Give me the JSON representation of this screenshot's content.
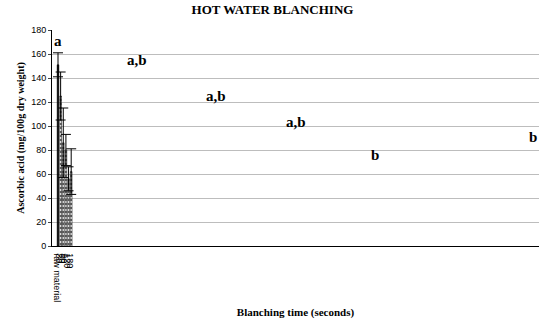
{
  "chart_data": {
    "type": "bar",
    "title": "HOT WATER BLANCHING",
    "x_label": "Blanching time (seconds)",
    "y_label": "Ascorbic acid (mg/100g dry weight)",
    "categories": [
      "raw material",
      "30",
      "60",
      "90",
      "120",
      "180"
    ],
    "values": [
      151,
      125,
      86,
      80,
      56,
      62
    ],
    "errors": [
      10,
      20,
      29,
      13,
      10,
      19
    ],
    "annotations": [
      "a",
      "a,b",
      "a,b",
      "a,b",
      "b",
      "b"
    ],
    "colors": [
      "#000000",
      "#6e6e6e",
      "#6e6e6e",
      "#6e6e6e",
      "#6e6e6e",
      "#6e6e6e"
    ],
    "ylim": [
      0,
      180
    ],
    "yticks": [
      0,
      20,
      40,
      60,
      80,
      100,
      120,
      140,
      160,
      180
    ],
    "grid": true
  }
}
